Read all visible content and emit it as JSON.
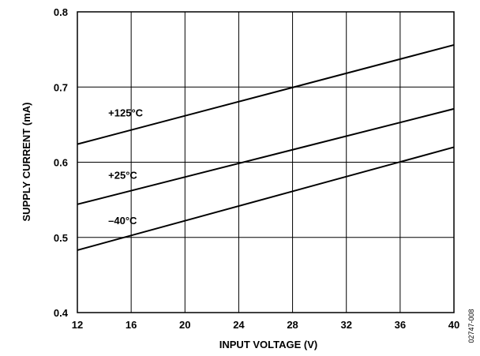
{
  "chart_data": {
    "type": "line",
    "title": "",
    "xlabel": "INPUT VOLTAGE (V)",
    "ylabel": "SUPPLY CURRENT (mA)",
    "xlim": [
      12,
      40
    ],
    "ylim": [
      0.4,
      0.8
    ],
    "x_ticks": [
      "12",
      "16",
      "20",
      "24",
      "28",
      "32",
      "36",
      "40"
    ],
    "y_ticks": [
      "0.4",
      "0.5",
      "0.6",
      "0.7",
      "0.8"
    ],
    "grid": true,
    "series": [
      {
        "name": "+125°C",
        "x": [
          12,
          40
        ],
        "y": [
          0.624,
          0.756
        ]
      },
      {
        "name": "+25°C",
        "x": [
          12,
          40
        ],
        "y": [
          0.544,
          0.671
        ]
      },
      {
        "name": "–40°C",
        "x": [
          12,
          40
        ],
        "y": [
          0.483,
          0.62
        ]
      }
    ],
    "figure_id": "02747-008"
  }
}
